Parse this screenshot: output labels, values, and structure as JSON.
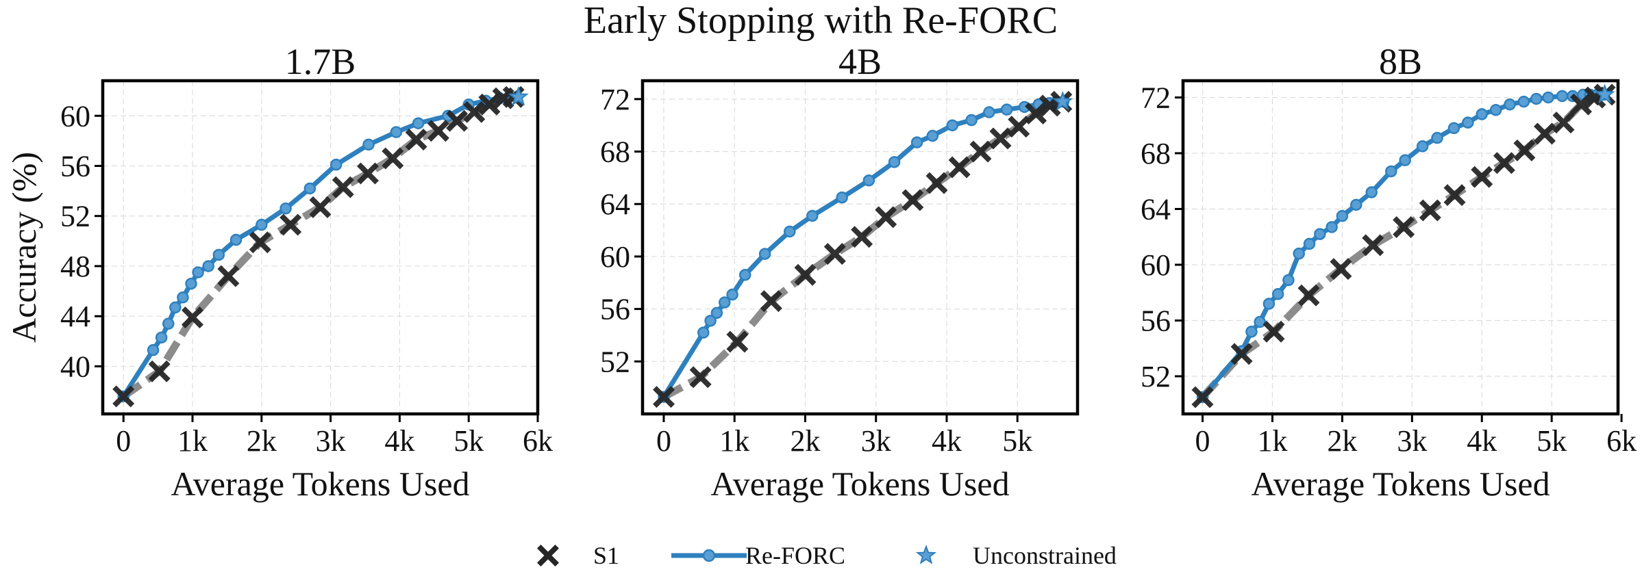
{
  "figure": {
    "suptitle": "Early Stopping with Re-FORC"
  },
  "legend": {
    "placement": "bottom-center",
    "items": [
      {
        "label": "S1",
        "marker": "x-icon",
        "color": "#2b2b2b"
      },
      {
        "label": "Re-FORC",
        "marker": "circle-line-icon",
        "color": "#2e80be"
      },
      {
        "label": "Unconstrained",
        "marker": "star-icon",
        "color": "#2e80be"
      }
    ]
  },
  "colors": {
    "refor": "#2e80be",
    "refor_marker": "#5a9fd4",
    "s1_line": "#808080",
    "s1_marker": "#262626",
    "grid": "#dddddd"
  },
  "chart_data": [
    {
      "type": "line",
      "title": "1.7B",
      "xlabel": "Average Tokens Used",
      "ylabel": "Accuracy (%)",
      "xlim": [
        -300,
        6000
      ],
      "ylim": [
        36.2,
        62.8
      ],
      "xticks": [
        0,
        1000,
        2000,
        3000,
        4000,
        5000,
        6000
      ],
      "xtick_labels": [
        "0",
        "1k",
        "2k",
        "3k",
        "4k",
        "5k",
        "6k"
      ],
      "yticks": [
        40,
        44,
        48,
        52,
        56,
        60
      ],
      "ytick_labels": [
        "40",
        "44",
        "48",
        "52",
        "56",
        "60"
      ],
      "grid": true,
      "series": [
        {
          "name": "Re-FORC",
          "style": "line-circle",
          "x": [
            0,
            430,
            550,
            650,
            750,
            860,
            980,
            1080,
            1230,
            1380,
            1630,
            2000,
            2350,
            2700,
            3080,
            3550,
            3950,
            4270,
            4700,
            5000,
            5250,
            5450,
            5700
          ],
          "y": [
            37.6,
            41.3,
            42.3,
            43.4,
            44.7,
            45.5,
            46.6,
            47.5,
            48.0,
            48.9,
            50.1,
            51.3,
            52.6,
            54.2,
            56.1,
            57.7,
            58.7,
            59.4,
            60.0,
            60.9,
            61.2,
            61.4,
            61.5
          ]
        },
        {
          "name": "S1",
          "style": "dashed-x",
          "x": [
            0,
            520,
            1000,
            1520,
            1980,
            2420,
            2850,
            3180,
            3540,
            3900,
            4240,
            4560,
            4830,
            5080,
            5300,
            5500,
            5650
          ],
          "y": [
            37.6,
            39.6,
            43.9,
            47.2,
            49.9,
            51.3,
            52.7,
            54.3,
            55.4,
            56.6,
            58.1,
            58.8,
            59.6,
            60.3,
            60.9,
            61.4,
            61.5
          ]
        },
        {
          "name": "Unconstrained",
          "style": "star",
          "x": [
            5720
          ],
          "y": [
            61.5
          ]
        }
      ]
    },
    {
      "type": "line",
      "title": "4B",
      "xlabel": "Average Tokens Used",
      "ylabel": "",
      "xlim": [
        -300,
        5850
      ],
      "ylim": [
        48.0,
        73.4
      ],
      "xticks": [
        0,
        1000,
        2000,
        3000,
        4000,
        5000
      ],
      "xtick_labels": [
        "0",
        "1k",
        "2k",
        "3k",
        "4k",
        "5k"
      ],
      "yticks": [
        52,
        56,
        60,
        64,
        68,
        72
      ],
      "ytick_labels": [
        "52",
        "56",
        "60",
        "64",
        "68",
        "72"
      ],
      "grid": true,
      "series": [
        {
          "name": "Re-FORC",
          "style": "line-circle",
          "x": [
            0,
            560,
            660,
            750,
            860,
            970,
            1150,
            1430,
            1780,
            2100,
            2520,
            2900,
            3260,
            3580,
            3800,
            4080,
            4350,
            4600,
            4850,
            5100,
            5300,
            5450,
            5550,
            5650
          ],
          "y": [
            49.3,
            54.2,
            55.1,
            55.7,
            56.5,
            57.1,
            58.6,
            60.2,
            61.9,
            63.1,
            64.5,
            65.8,
            67.2,
            68.7,
            69.2,
            70.0,
            70.4,
            71.0,
            71.2,
            71.4,
            71.6,
            71.7,
            71.8,
            71.8
          ]
        },
        {
          "name": "S1",
          "style": "dashed-x",
          "x": [
            0,
            520,
            1040,
            1520,
            2000,
            2420,
            2800,
            3140,
            3520,
            3860,
            4180,
            4480,
            4760,
            5020,
            5260,
            5460,
            5620
          ],
          "y": [
            49.3,
            50.8,
            53.5,
            56.6,
            58.6,
            60.2,
            61.5,
            63.0,
            64.3,
            65.6,
            66.8,
            68.0,
            69.0,
            69.9,
            70.9,
            71.5,
            71.8
          ]
        },
        {
          "name": "Unconstrained",
          "style": "star",
          "x": [
            5640
          ],
          "y": [
            71.8
          ]
        }
      ]
    },
    {
      "type": "line",
      "title": "8B",
      "xlabel": "Average Tokens Used",
      "ylabel": "",
      "xlim": [
        -280,
        5950
      ],
      "ylim": [
        49.3,
        73.2
      ],
      "xticks": [
        0,
        1000,
        2000,
        3000,
        4000,
        5000,
        6000
      ],
      "xtick_labels": [
        "0",
        "1k",
        "2k",
        "3k",
        "4k",
        "5k",
        "6k"
      ],
      "yticks": [
        52,
        56,
        60,
        64,
        68,
        72
      ],
      "ytick_labels": [
        "52",
        "56",
        "60",
        "64",
        "68",
        "72"
      ],
      "grid": true,
      "series": [
        {
          "name": "Re-FORC",
          "style": "line-circle",
          "x": [
            0,
            560,
            700,
            820,
            950,
            1080,
            1230,
            1380,
            1530,
            1680,
            1850,
            2000,
            2200,
            2420,
            2700,
            2900,
            3150,
            3360,
            3600,
            3800,
            4000,
            4200,
            4400,
            4600,
            4780,
            4950,
            5150,
            5300,
            5450,
            5550,
            5650,
            5750
          ],
          "y": [
            50.5,
            53.8,
            55.2,
            55.9,
            57.2,
            57.9,
            58.9,
            60.8,
            61.5,
            62.2,
            62.7,
            63.5,
            64.3,
            65.2,
            66.7,
            67.5,
            68.5,
            69.1,
            69.8,
            70.2,
            70.8,
            71.1,
            71.5,
            71.7,
            71.9,
            72.0,
            72.1,
            72.1,
            72.2,
            72.2,
            72.2,
            72.2
          ]
        },
        {
          "name": "S1",
          "style": "dashed-x",
          "x": [
            0,
            560,
            1020,
            1520,
            1980,
            2440,
            2880,
            3260,
            3610,
            4000,
            4320,
            4610,
            4900,
            5170,
            5420,
            5620,
            5760
          ],
          "y": [
            50.5,
            53.6,
            55.2,
            57.8,
            59.7,
            61.4,
            62.7,
            63.9,
            65.0,
            66.3,
            67.3,
            68.2,
            69.4,
            70.2,
            71.5,
            72.0,
            72.2
          ]
        },
        {
          "name": "Unconstrained",
          "style": "star",
          "x": [
            5760
          ],
          "y": [
            72.2
          ]
        }
      ]
    }
  ]
}
